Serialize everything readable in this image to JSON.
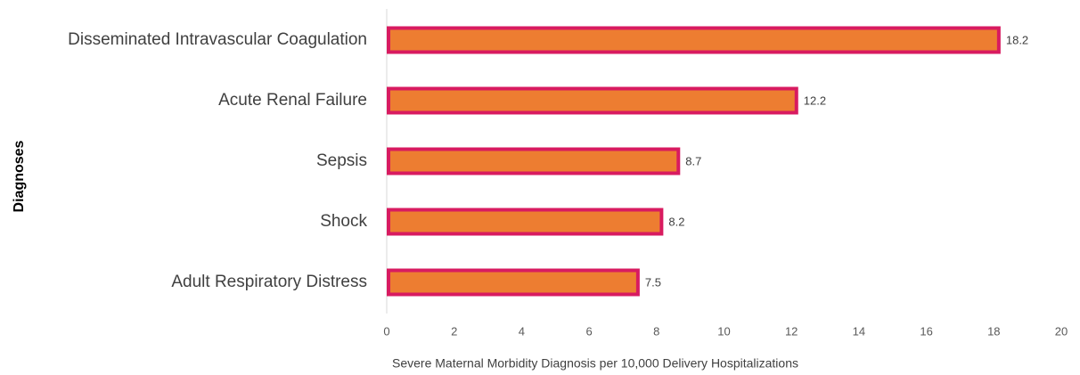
{
  "chart_data": {
    "type": "bar",
    "orientation": "horizontal",
    "categories": [
      "Disseminated Intravascular Coagulation",
      "Acute Renal Failure",
      "Sepsis",
      "Shock",
      "Adult Respiratory Distress"
    ],
    "values": [
      18.2,
      12.2,
      8.7,
      8.2,
      7.5
    ],
    "color": "#ed7d31",
    "edge_color": "#d81b60",
    "xlabel": "Severe Maternal Morbidity Diagnosis per 10,000 Delivery Hospitalizations",
    "ylabel": "Diagnoses",
    "xlim": [
      0,
      20
    ],
    "xticks": [
      0,
      2,
      4,
      6,
      8,
      10,
      12,
      14,
      16,
      18,
      20
    ],
    "grid": false
  }
}
